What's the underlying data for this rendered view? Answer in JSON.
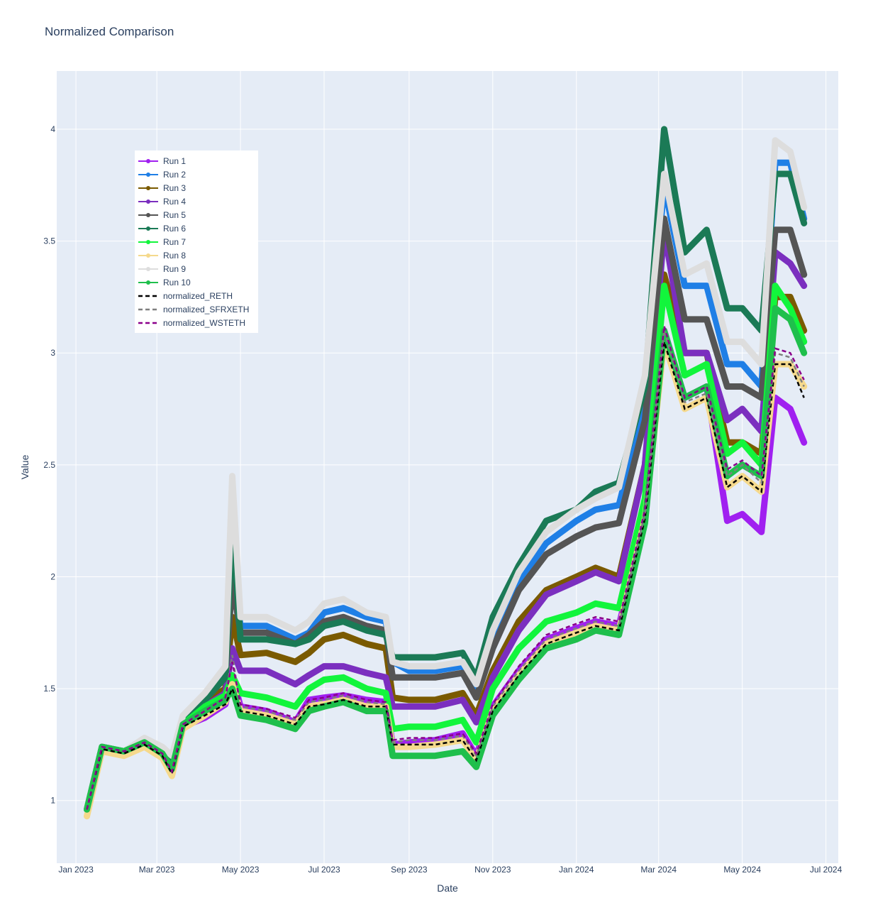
{
  "chart_data": {
    "type": "line",
    "title": "Normalized Comparison",
    "xlabel": "Date",
    "ylabel": "Value",
    "x_range": [
      "2022-12-18",
      "2024-07-10"
    ],
    "ylim": [
      0.72,
      4.26
    ],
    "x_ticks": [
      {
        "date": "2023-01-01",
        "label": "Jan 2023"
      },
      {
        "date": "2023-03-01",
        "label": "Mar 2023"
      },
      {
        "date": "2023-05-01",
        "label": "May 2023"
      },
      {
        "date": "2023-07-01",
        "label": "Jul 2023"
      },
      {
        "date": "2023-09-01",
        "label": "Sep 2023"
      },
      {
        "date": "2023-11-01",
        "label": "Nov 2023"
      },
      {
        "date": "2024-01-01",
        "label": "Jan 2024"
      },
      {
        "date": "2024-03-01",
        "label": "Mar 2024"
      },
      {
        "date": "2024-05-01",
        "label": "May 2024"
      },
      {
        "date": "2024-07-01",
        "label": "Jul 2024"
      }
    ],
    "y_ticks": [
      {
        "value": 1,
        "label": "1"
      },
      {
        "value": 1.5,
        "label": "1.5"
      },
      {
        "value": 2,
        "label": "2"
      },
      {
        "value": 2.5,
        "label": "2.5"
      },
      {
        "value": 3,
        "label": "3"
      },
      {
        "value": 3.5,
        "label": "3.5"
      },
      {
        "value": 4,
        "label": "4"
      }
    ],
    "grid": true,
    "legend_position": "top-left",
    "background": "#e5ecf6",
    "x": [
      "2023-01-09",
      "2023-01-20",
      "2023-02-05",
      "2023-02-20",
      "2023-03-05",
      "2023-03-12",
      "2023-03-20",
      "2023-04-05",
      "2023-04-20",
      "2023-04-25",
      "2023-05-01",
      "2023-05-20",
      "2023-06-10",
      "2023-06-20",
      "2023-07-01",
      "2023-07-15",
      "2023-08-01",
      "2023-08-15",
      "2023-08-20",
      "2023-09-01",
      "2023-09-20",
      "2023-10-10",
      "2023-10-20",
      "2023-11-01",
      "2023-11-20",
      "2023-12-10",
      "2024-01-01",
      "2024-01-15",
      "2024-02-01",
      "2024-02-20",
      "2024-03-05",
      "2024-03-20",
      "2024-04-05",
      "2024-04-20",
      "2024-05-01",
      "2024-05-15",
      "2024-05-25",
      "2024-06-05",
      "2024-06-15"
    ],
    "series": [
      {
        "name": "Run 1",
        "color": "#a020f0",
        "dash": false,
        "values": [
          0.96,
          1.24,
          1.22,
          1.25,
          1.2,
          1.12,
          1.33,
          1.37,
          1.43,
          1.56,
          1.42,
          1.4,
          1.35,
          1.45,
          1.46,
          1.47,
          1.45,
          1.44,
          1.25,
          1.26,
          1.27,
          1.3,
          1.2,
          1.42,
          1.58,
          1.72,
          1.77,
          1.8,
          1.78,
          2.28,
          3.1,
          2.8,
          2.85,
          2.25,
          2.28,
          2.2,
          2.8,
          2.75,
          2.6
        ]
      },
      {
        "name": "Run 2",
        "color": "#1f7fe6",
        "dash": false,
        "values": [
          0.96,
          1.24,
          1.22,
          1.27,
          1.23,
          1.17,
          1.36,
          1.46,
          1.56,
          2.05,
          1.78,
          1.78,
          1.72,
          1.75,
          1.84,
          1.86,
          1.82,
          1.8,
          1.62,
          1.58,
          1.58,
          1.6,
          1.5,
          1.72,
          1.98,
          2.15,
          2.25,
          2.3,
          2.32,
          2.78,
          3.75,
          3.3,
          3.3,
          2.95,
          2.95,
          2.85,
          3.85,
          3.85,
          3.6
        ]
      },
      {
        "name": "Run 3",
        "color": "#7a5a00",
        "dash": false,
        "values": [
          0.96,
          1.24,
          1.22,
          1.26,
          1.21,
          1.14,
          1.34,
          1.44,
          1.5,
          1.82,
          1.65,
          1.66,
          1.62,
          1.66,
          1.72,
          1.74,
          1.7,
          1.68,
          1.46,
          1.45,
          1.45,
          1.48,
          1.38,
          1.58,
          1.8,
          1.94,
          2.0,
          2.04,
          2.0,
          2.5,
          3.35,
          3.0,
          3.0,
          2.6,
          2.6,
          2.55,
          3.25,
          3.25,
          3.1
        ]
      },
      {
        "name": "Run 4",
        "color": "#7b2fbf",
        "dash": false,
        "values": [
          0.96,
          1.24,
          1.22,
          1.26,
          1.21,
          1.14,
          1.34,
          1.42,
          1.48,
          1.68,
          1.58,
          1.58,
          1.52,
          1.56,
          1.6,
          1.6,
          1.57,
          1.55,
          1.42,
          1.42,
          1.42,
          1.45,
          1.35,
          1.55,
          1.76,
          1.92,
          1.98,
          2.02,
          1.98,
          2.5,
          3.55,
          3.0,
          3.0,
          2.7,
          2.75,
          2.65,
          3.45,
          3.4,
          3.3
        ]
      },
      {
        "name": "Run 5",
        "color": "#555555",
        "dash": false,
        "values": [
          0.96,
          1.24,
          1.22,
          1.27,
          1.22,
          1.16,
          1.36,
          1.45,
          1.55,
          1.98,
          1.75,
          1.75,
          1.7,
          1.74,
          1.8,
          1.82,
          1.78,
          1.76,
          1.55,
          1.55,
          1.55,
          1.57,
          1.46,
          1.68,
          1.94,
          2.1,
          2.18,
          2.22,
          2.24,
          2.7,
          3.6,
          3.15,
          3.15,
          2.85,
          2.85,
          2.8,
          3.55,
          3.55,
          3.35
        ]
      },
      {
        "name": "Run 6",
        "color": "#1b7a56",
        "dash": false,
        "values": [
          0.96,
          1.24,
          1.22,
          1.27,
          1.23,
          1.18,
          1.37,
          1.45,
          1.55,
          2.25,
          1.72,
          1.72,
          1.7,
          1.72,
          1.78,
          1.8,
          1.76,
          1.74,
          1.64,
          1.64,
          1.64,
          1.66,
          1.55,
          1.82,
          2.05,
          2.25,
          2.3,
          2.38,
          2.42,
          2.85,
          4.0,
          3.45,
          3.55,
          3.2,
          3.2,
          3.1,
          3.8,
          3.8,
          3.58
        ]
      },
      {
        "name": "Run 7",
        "color": "#12f53c",
        "dash": false,
        "values": [
          0.96,
          1.24,
          1.22,
          1.26,
          1.21,
          1.14,
          1.34,
          1.42,
          1.47,
          1.56,
          1.48,
          1.46,
          1.42,
          1.5,
          1.54,
          1.55,
          1.5,
          1.48,
          1.32,
          1.33,
          1.33,
          1.36,
          1.26,
          1.5,
          1.68,
          1.8,
          1.84,
          1.88,
          1.86,
          2.35,
          3.3,
          2.9,
          2.95,
          2.55,
          2.6,
          2.5,
          3.3,
          3.2,
          3.05
        ]
      },
      {
        "name": "Run 8",
        "color": "#f5d98c",
        "dash": false,
        "values": [
          0.93,
          1.22,
          1.2,
          1.24,
          1.19,
          1.11,
          1.32,
          1.38,
          1.44,
          1.52,
          1.4,
          1.38,
          1.34,
          1.42,
          1.43,
          1.45,
          1.42,
          1.42,
          1.24,
          1.24,
          1.25,
          1.27,
          1.18,
          1.4,
          1.56,
          1.7,
          1.75,
          1.78,
          1.76,
          2.26,
          3.05,
          2.75,
          2.8,
          2.4,
          2.45,
          2.38,
          2.95,
          2.95,
          2.85
        ]
      },
      {
        "name": "Run 9",
        "color": "#dddddd",
        "dash": false,
        "values": [
          0.96,
          1.24,
          1.22,
          1.28,
          1.24,
          1.2,
          1.38,
          1.48,
          1.6,
          2.45,
          1.82,
          1.82,
          1.76,
          1.8,
          1.88,
          1.9,
          1.84,
          1.82,
          1.62,
          1.6,
          1.6,
          1.62,
          1.52,
          1.76,
          2.02,
          2.2,
          2.3,
          2.35,
          2.4,
          2.9,
          3.8,
          3.35,
          3.4,
          3.05,
          3.05,
          2.95,
          3.95,
          3.9,
          3.65
        ]
      },
      {
        "name": "Run 10",
        "color": "#1fbf4c",
        "dash": false,
        "values": [
          0.96,
          1.24,
          1.22,
          1.26,
          1.21,
          1.14,
          1.34,
          1.4,
          1.45,
          1.5,
          1.38,
          1.36,
          1.32,
          1.4,
          1.42,
          1.44,
          1.4,
          1.4,
          1.2,
          1.2,
          1.2,
          1.22,
          1.15,
          1.38,
          1.54,
          1.68,
          1.72,
          1.76,
          1.74,
          2.24,
          3.1,
          2.8,
          2.85,
          2.45,
          2.5,
          2.45,
          3.2,
          3.15,
          3.0
        ]
      },
      {
        "name": "normalized_RETH",
        "color": "#000000",
        "dash": true,
        "values": [
          0.96,
          1.23,
          1.21,
          1.25,
          1.2,
          1.12,
          1.33,
          1.38,
          1.43,
          1.5,
          1.4,
          1.38,
          1.34,
          1.42,
          1.43,
          1.45,
          1.42,
          1.42,
          1.25,
          1.25,
          1.25,
          1.27,
          1.18,
          1.4,
          1.56,
          1.7,
          1.75,
          1.78,
          1.76,
          2.26,
          3.05,
          2.75,
          2.8,
          2.4,
          2.45,
          2.38,
          2.95,
          2.95,
          2.8
        ]
      },
      {
        "name": "normalized_SFRXETH",
        "color": "#7f7f7f",
        "dash": true,
        "values": [
          0.96,
          1.24,
          1.22,
          1.26,
          1.21,
          1.13,
          1.34,
          1.4,
          1.46,
          1.65,
          1.42,
          1.4,
          1.36,
          1.44,
          1.45,
          1.47,
          1.44,
          1.43,
          1.26,
          1.27,
          1.27,
          1.29,
          1.2,
          1.42,
          1.58,
          1.72,
          1.77,
          1.8,
          1.78,
          2.28,
          3.1,
          2.78,
          2.82,
          2.45,
          2.5,
          2.42,
          3.0,
          2.98,
          2.85
        ]
      },
      {
        "name": "normalized_WSTETH",
        "color": "#8b008b",
        "dash": true,
        "values": [
          0.96,
          1.24,
          1.22,
          1.26,
          1.21,
          1.13,
          1.34,
          1.4,
          1.46,
          1.62,
          1.43,
          1.41,
          1.37,
          1.45,
          1.46,
          1.48,
          1.45,
          1.44,
          1.27,
          1.28,
          1.28,
          1.3,
          1.21,
          1.43,
          1.6,
          1.74,
          1.79,
          1.82,
          1.8,
          2.3,
          3.12,
          2.8,
          2.85,
          2.48,
          2.52,
          2.45,
          3.02,
          3.0,
          2.88
        ]
      }
    ]
  }
}
